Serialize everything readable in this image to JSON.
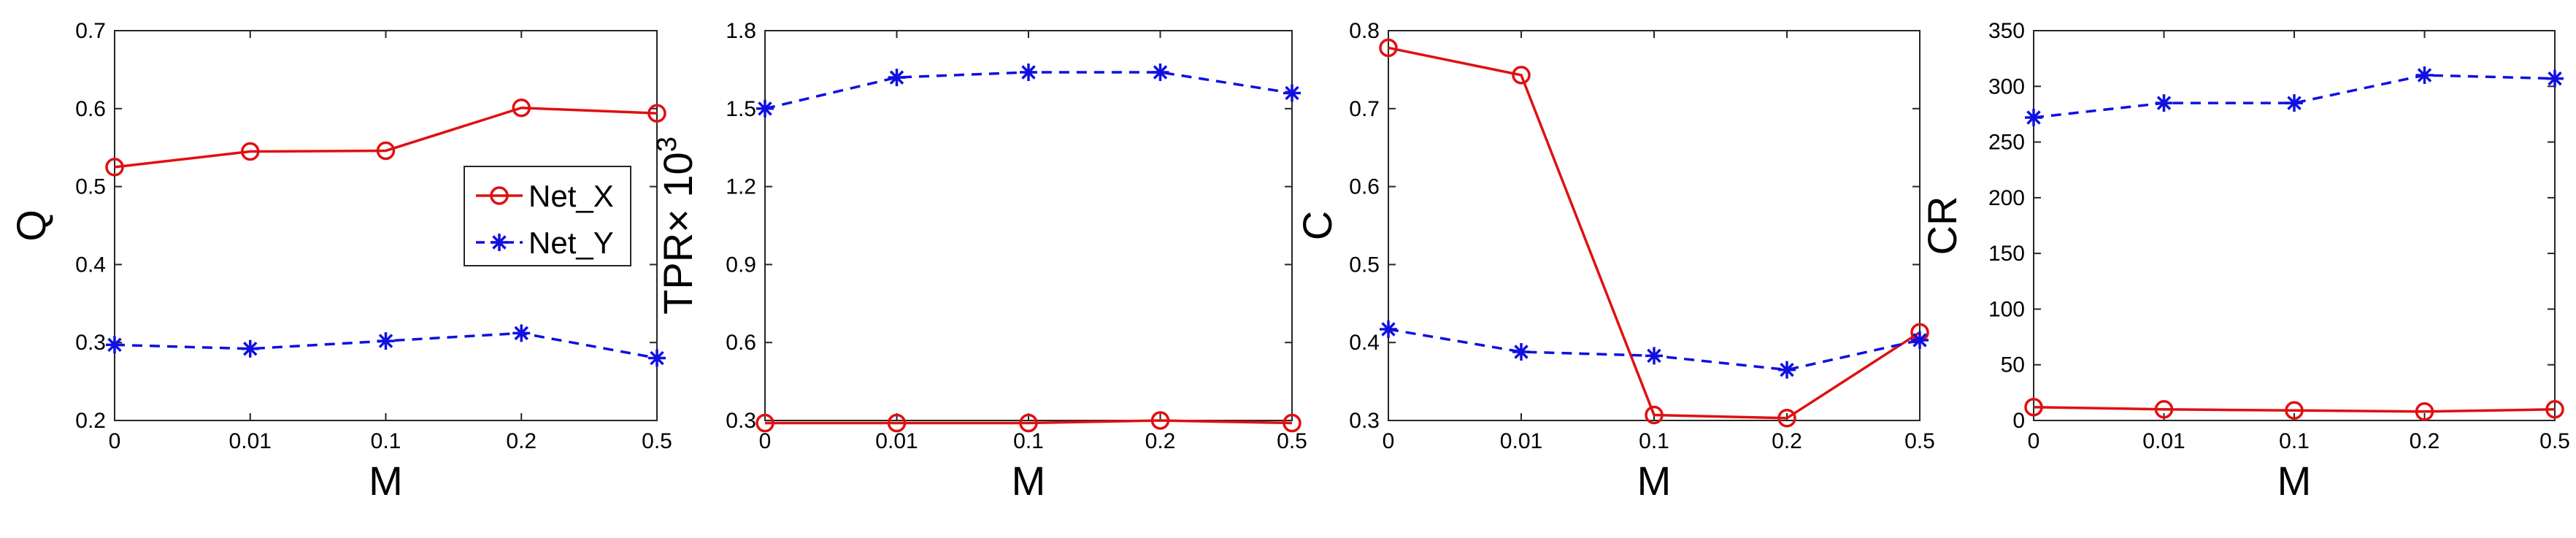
{
  "chart_data": [
    {
      "type": "line",
      "categories": [
        "0",
        "0.01",
        "0.1",
        "0.2",
        "0.5"
      ],
      "xlabel": "M",
      "ylabel": "Q",
      "ylim": [
        0.2,
        0.7
      ],
      "yticks": [
        "0.2",
        "0.3",
        "0.4",
        "0.5",
        "0.6",
        "0.7"
      ],
      "legend": "top-right",
      "series": [
        {
          "name": "Net_X",
          "values": [
            0.525,
            0.545,
            0.546,
            0.601,
            0.594
          ]
        },
        {
          "name": "Net_Y",
          "values": [
            0.297,
            0.292,
            0.302,
            0.312,
            0.28
          ]
        }
      ]
    },
    {
      "type": "line",
      "categories": [
        "0",
        "0.01",
        "0.1",
        "0.2",
        "0.5"
      ],
      "xlabel": "M",
      "ylabel": "TPR× 10",
      "ylabel_exponent": "3",
      "ylim": [
        0.3,
        1.8
      ],
      "yticks": [
        "0.3",
        "0.6",
        "0.9",
        "1.2",
        "1.5",
        "1.8"
      ],
      "series": [
        {
          "name": "Net_X",
          "values": [
            0.29,
            0.29,
            0.29,
            0.3,
            0.29
          ]
        },
        {
          "name": "Net_Y",
          "values": [
            1.5,
            1.62,
            1.64,
            1.64,
            1.56
          ]
        }
      ]
    },
    {
      "type": "line",
      "categories": [
        "0",
        "0.01",
        "0.1",
        "0.2",
        "0.5"
      ],
      "xlabel": "M",
      "ylabel": "C",
      "ylim": [
        0.3,
        0.8
      ],
      "yticks": [
        "0.3",
        "0.4",
        "0.5",
        "0.6",
        "0.7",
        "0.8"
      ],
      "series": [
        {
          "name": "Net_X",
          "values": [
            0.778,
            0.743,
            0.307,
            0.303,
            0.413
          ]
        },
        {
          "name": "Net_Y",
          "values": [
            0.417,
            0.388,
            0.383,
            0.365,
            0.403
          ]
        }
      ]
    },
    {
      "type": "line",
      "categories": [
        "0",
        "0.01",
        "0.1",
        "0.2",
        "0.5"
      ],
      "xlabel": "M",
      "ylabel": "CR",
      "ylim": [
        0,
        350
      ],
      "yticks": [
        "0",
        "50",
        "100",
        "150",
        "200",
        "250",
        "300",
        "350"
      ],
      "series": [
        {
          "name": "Net_X",
          "values": [
            12,
            10,
            9,
            8,
            10
          ]
        },
        {
          "name": "Net_Y",
          "values": [
            272,
            285,
            285,
            310,
            307
          ]
        }
      ]
    }
  ],
  "legend": {
    "items": [
      {
        "label": "Net_X",
        "color": "#e01010",
        "marker": "circle",
        "dash": "solid"
      },
      {
        "label": "Net_Y",
        "color": "#1010e0",
        "marker": "star",
        "dash": "dashed"
      }
    ]
  }
}
